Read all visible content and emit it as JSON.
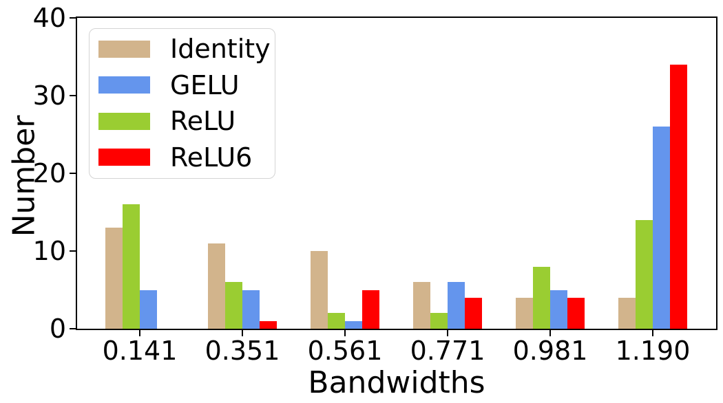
{
  "chart_data": {
    "type": "bar",
    "title": "",
    "xlabel": "Bandwidths",
    "ylabel": "Number",
    "categories": [
      "0.141",
      "0.351",
      "0.561",
      "0.771",
      "0.981",
      "1.190"
    ],
    "series": [
      {
        "name": "Identity",
        "color": "#d2b48c",
        "values": [
          13,
          11,
          10,
          6,
          4,
          4
        ]
      },
      {
        "name": "GELU",
        "color": "#6495ed",
        "values": [
          5,
          5,
          1,
          6,
          5,
          26
        ]
      },
      {
        "name": "ReLU",
        "color": "#9acd32",
        "values": [
          16,
          6,
          2,
          2,
          8,
          14
        ]
      },
      {
        "name": "ReLU6",
        "color": "#ff0000",
        "values": [
          0,
          1,
          5,
          4,
          4,
          34
        ]
      }
    ],
    "bar_draw_order": [
      "Identity",
      "ReLU",
      "GELU",
      "ReLU6"
    ],
    "ylim": [
      0,
      40
    ],
    "yticks": [
      0,
      10,
      20,
      30,
      40
    ],
    "legend_position": "upper left",
    "grid": false,
    "axis_color": "#000000",
    "background_color": "#ffffff"
  }
}
